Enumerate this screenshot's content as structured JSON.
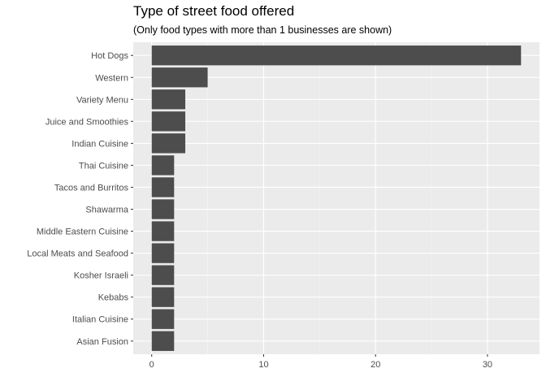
{
  "chart_data": {
    "type": "bar",
    "orientation": "horizontal",
    "title": "Type of street food offered",
    "subtitle": "(Only food types with more than 1 businesses are shown)",
    "xlabel": "",
    "ylabel": "",
    "categories": [
      "Hot Dogs",
      "Western",
      "Variety Menu",
      "Juice and Smoothies",
      "Indian Cuisine",
      "Thai Cuisine",
      "Tacos and Burritos",
      "Shawarma",
      "Middle Eastern Cuisine",
      "Local Meats and Seafood",
      "Kosher Israeli",
      "Kebabs",
      "Italian Cuisine",
      "Asian Fusion"
    ],
    "values": [
      33,
      5,
      3,
      3,
      3,
      2,
      2,
      2,
      2,
      2,
      2,
      2,
      2,
      2
    ],
    "xlim": [
      -1.65,
      34.65
    ],
    "xticks": [
      0,
      10,
      20,
      30
    ],
    "grid": true,
    "legend": "none",
    "colors": {
      "bar": "#4d4d4d",
      "panel": "#ebebeb",
      "grid_major": "#ffffff",
      "grid_minor": "#f5f5f5",
      "tick_text": "#4d4d4d",
      "tick_mark": "#333333"
    }
  }
}
